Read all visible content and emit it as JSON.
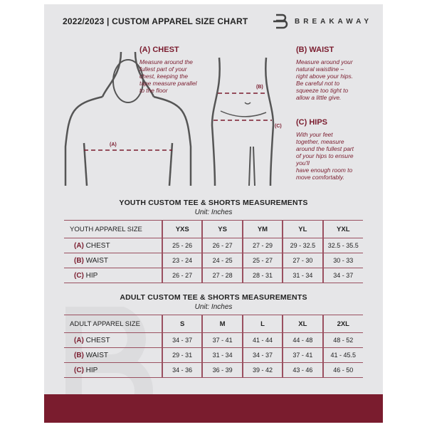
{
  "header": {
    "title": "2022/2023  |  CUSTOM APPAREL SIZE CHART",
    "brand": "BREAKAWAY"
  },
  "annotations": {
    "chest": {
      "tag": "(A)",
      "label": "CHEST",
      "text": [
        "Measure around the",
        "fullest part of your",
        "chest, keeping the",
        "tape measure parallel",
        "to the floor"
      ],
      "marker": "(A)"
    },
    "waist": {
      "tag": "(B)",
      "label": "WAIST",
      "text": [
        "Measure around your",
        "natural waistline –",
        "right above your hips.",
        "Be careful not to",
        "squeeze too tight to",
        "allow a little give."
      ],
      "marker": "(B)"
    },
    "hips": {
      "tag": "(C)",
      "label": "HIPS",
      "text": [
        "With your feet",
        "together, measure",
        "around the fullest part",
        "of your hips to ensure",
        "you'll",
        "have enough room to",
        "move comfortably."
      ],
      "marker": "(C)"
    }
  },
  "youth": {
    "title": "YOUTH CUSTOM TEE & SHORTS MEASUREMENTS",
    "unit": "Unit: Inches",
    "header": "YOUTH APPAREL SIZE",
    "sizes": [
      "YXS",
      "YS",
      "YM",
      "YL",
      "YXL"
    ],
    "rows": [
      {
        "tag": "(A)",
        "label": "CHEST",
        "values": [
          "25 - 26",
          "26 - 27",
          "27 - 29",
          "29 - 32.5",
          "32.5 - 35.5"
        ]
      },
      {
        "tag": "(B)",
        "label": "WAIST",
        "values": [
          "23 - 24",
          "24 - 25",
          "25 - 27",
          "27 - 30",
          "30 - 33"
        ]
      },
      {
        "tag": "(C)",
        "label": "HIP",
        "values": [
          "26 - 27",
          "27 - 28",
          "28 - 31",
          "31 - 34",
          "34 - 37"
        ]
      }
    ]
  },
  "adult": {
    "title": "ADULT CUSTOM TEE & SHORTS MEASUREMENTS",
    "unit": "Unit: Inches",
    "header": "ADULT APPAREL SIZE",
    "sizes": [
      "S",
      "M",
      "L",
      "XL",
      "2XL"
    ],
    "rows": [
      {
        "tag": "(A)",
        "label": "CHEST",
        "values": [
          "34 - 37",
          "37 - 41",
          "41 - 44",
          "44 - 48",
          "48 - 52"
        ]
      },
      {
        "tag": "(B)",
        "label": "WAIST",
        "values": [
          "29 - 31",
          "31 - 34",
          "34 - 37",
          "37 - 41",
          "41 - 45.5"
        ]
      },
      {
        "tag": "(C)",
        "label": "HIP",
        "values": [
          "34 - 36",
          "36 - 39",
          "39 - 42",
          "43 - 46",
          "46 - 50"
        ]
      }
    ]
  },
  "colors": {
    "accent": "#7a1c2e",
    "background": "#e6e6e8"
  }
}
